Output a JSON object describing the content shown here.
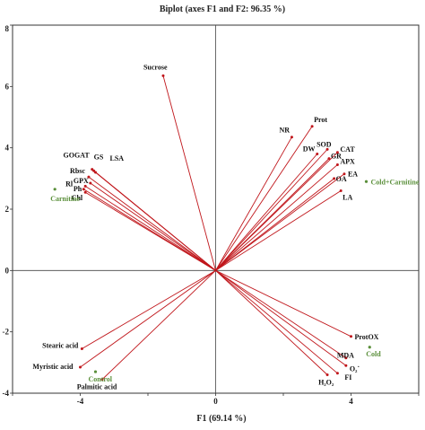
{
  "chart_data": {
    "type": "scatter",
    "title": "Biplot (axes F1 and F2: 96.35 %)",
    "xlabel": "F1 (69.14 %)",
    "ylabel": "",
    "xlim": [
      -6,
      6
    ],
    "ylim": [
      -4,
      8
    ],
    "xticks": [
      -6,
      -4,
      -2,
      0,
      2,
      4,
      6
    ],
    "yticks": [
      -4,
      -2,
      0,
      2,
      4,
      6,
      8
    ],
    "tick_labels_x": [
      "-4",
      "0",
      "4"
    ],
    "tick_labels_y": [
      "-4",
      "-2",
      "0",
      "2",
      "4",
      "6",
      "8"
    ],
    "grid": false,
    "colors": {
      "vector": "#c0161b",
      "observation": "#5a8f3a",
      "axis": "#444444"
    },
    "variables": [
      {
        "name": "Sucrose",
        "x": -1.55,
        "y": 6.35
      },
      {
        "name": "Prot",
        "x": 2.85,
        "y": 4.7
      },
      {
        "name": "NR",
        "x": 2.25,
        "y": 4.35
      },
      {
        "name": "DW",
        "x": 3.0,
        "y": 3.8
      },
      {
        "name": "SOD",
        "x": 3.3,
        "y": 3.95
      },
      {
        "name": "CAT",
        "x": 3.6,
        "y": 3.85
      },
      {
        "name": "GR",
        "x": 3.35,
        "y": 3.65
      },
      {
        "name": "APX",
        "x": 3.6,
        "y": 3.45
      },
      {
        "name": "EA",
        "x": 3.8,
        "y": 3.15
      },
      {
        "name": "OA",
        "x": 3.5,
        "y": 3.0
      },
      {
        "name": "LA",
        "x": 3.7,
        "y": 2.6
      },
      {
        "name": "GOGAT",
        "x": -3.65,
        "y": 3.3
      },
      {
        "name": "GS",
        "x": -3.6,
        "y": 3.25
      },
      {
        "name": "LSA",
        "x": -3.55,
        "y": 3.2
      },
      {
        "name": "Rbsc",
        "x": -3.75,
        "y": 3.05
      },
      {
        "name": "GPX",
        "x": -3.7,
        "y": 2.85
      },
      {
        "name": "Rl",
        "x": -3.85,
        "y": 2.75
      },
      {
        "name": "Ph",
        "x": -3.9,
        "y": 2.65
      },
      {
        "name": "Chl",
        "x": -3.85,
        "y": 2.55
      },
      {
        "name": "Stearic acid",
        "x": -3.95,
        "y": -2.55
      },
      {
        "name": "Myristic acid",
        "x": -4.0,
        "y": -3.15
      },
      {
        "name": "Palmitic acid",
        "x": -3.35,
        "y": -3.55
      },
      {
        "name": "ProtOX",
        "x": 4.0,
        "y": -2.15
      },
      {
        "name": "MDA",
        "x": 3.85,
        "y": -2.85
      },
      {
        "name": "O₂˙",
        "x": 3.85,
        "y": -3.1
      },
      {
        "name": "FI",
        "x": 3.6,
        "y": -3.35
      },
      {
        "name": "H₂O₂",
        "x": 3.3,
        "y": -3.4
      }
    ],
    "observations": [
      {
        "name": "Carnitine",
        "x": -4.75,
        "y": 2.65
      },
      {
        "name": "Cold+Carnitine",
        "x": 4.45,
        "y": 2.9
      },
      {
        "name": "Control",
        "x": -3.55,
        "y": -3.3
      },
      {
        "name": "Cold",
        "x": 4.55,
        "y": -2.5
      }
    ]
  }
}
